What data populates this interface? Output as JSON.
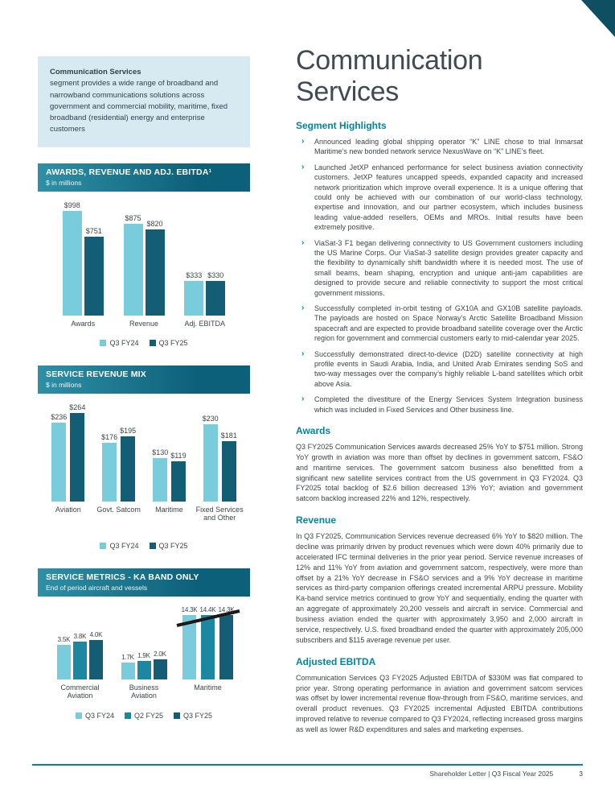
{
  "page": {
    "colors": {
      "teal_heading": "#0084a3",
      "header_gradient_start": "#2e90a6",
      "header_gradient_end": "#0d6079",
      "bar_light": "#79ccdb",
      "bar_mid": "#1b87a0",
      "bar_dark": "#135d75",
      "info_box_bg": "#d7eaf2",
      "corner_accent": "#0e5062"
    },
    "footer": {
      "text": "Shareholder Letter  |  Q3 Fiscal Year 2025",
      "page_number": "3"
    }
  },
  "info_box": {
    "title": "Communication Services",
    "body": "segment provides a wide range of broadband and narrowband communications solutions across government and commercial mobility, maritime, fixed broadband (residential) energy and enterprise customers"
  },
  "charts": [
    {
      "header": "AWARDS, REVENUE AND ADJ. EBITDA¹",
      "subheader": "$ in millions",
      "chart_data": {
        "type": "bar",
        "categories": [
          "Awards",
          "Revenue",
          "Adj. EBITDA"
        ],
        "series": [
          {
            "name": "Q3 FY24",
            "color": "#79ccdb",
            "values": [
              998,
              875,
              333
            ],
            "value_labels": [
              "$998",
              "$875",
              "$333"
            ]
          },
          {
            "name": "Q3 FY25",
            "color": "#135d75",
            "values": [
              751,
              820,
              330
            ],
            "value_labels": [
              "$751",
              "$820",
              "$330"
            ]
          }
        ],
        "ylim": [
          0,
          1000
        ],
        "grid": false,
        "legend_position": "bottom"
      }
    },
    {
      "header": "SERVICE REVENUE MIX",
      "subheader": "$ in millions",
      "chart_data": {
        "type": "bar",
        "categories": [
          "Aviation",
          "Govt. Satcom",
          "Maritime",
          "Fixed Services and Other"
        ],
        "series": [
          {
            "name": "Q3 FY24",
            "color": "#79ccdb",
            "values": [
              236,
              176,
              130,
              230
            ],
            "value_labels": [
              "$236",
              "$176",
              "$130",
              "$230"
            ]
          },
          {
            "name": "Q3 FY25",
            "color": "#135d75",
            "values": [
              264,
              195,
              119,
              181
            ],
            "value_labels": [
              "$264",
              "$195",
              "$119",
              "$181"
            ]
          }
        ],
        "ylim": [
          0,
          280
        ],
        "grid": false,
        "legend_position": "bottom"
      }
    },
    {
      "header": "SERVICE METRICS - KA BAND ONLY",
      "subheader": "End of period aircraft and vessels",
      "chart_data": {
        "type": "bar",
        "categories": [
          "Commercial Aviation",
          "Business Aviation",
          "Maritime"
        ],
        "series": [
          {
            "name": "Q3 FY24",
            "color": "#79ccdb",
            "values": [
              3500,
              1700,
              14300
            ],
            "value_labels": [
              "3.5K",
              "1.7K",
              "14.3K"
            ]
          },
          {
            "name": "Q2 FY25",
            "color": "#1b87a0",
            "values": [
              3800,
              1900,
              14400
            ],
            "value_labels": [
              "3.8K",
              "1.9K",
              "14.4K"
            ]
          },
          {
            "name": "Q3 FY25",
            "color": "#135d75",
            "values": [
              4000,
              2000,
              14300
            ],
            "value_labels": [
              "4.0K",
              "2.0K",
              "14.3K"
            ]
          }
        ],
        "axis_break": true,
        "break_cap": 6500,
        "break_categories": [
          2
        ],
        "grid": false,
        "legend_position": "bottom"
      }
    }
  ],
  "article": {
    "title": "Communication Services",
    "highlights": {
      "heading": "Segment Highlights",
      "marker": "›",
      "bullets": [
        "Announced leading global shipping operator “K” LINE chose to trial Inmarsat Maritime’s new bonded network service NexusWave on “K” LINE’s fleet.",
        "Launched JetXP enhanced performance for select business aviation connectivity customers. JetXP features uncapped speeds, expanded capacity and increased network prioritization which improve overall experience. It is a unique offering that could only be achieved with our combination of our world-class technology, expertise and innovation, and our partner ecosystem, which includes business leading value-added resellers, OEMs and MROs. Initial results have been extremely positive.",
        "ViaSat-3 F1 began delivering connectivity to US Government customers including the US Marine Corps. Our ViaSat-3 satellite design provides greater capacity and the flexibility to dynamically shift bandwidth where it is needed most. The use of small beams, beam shaping, encryption and unique anti-jam capabilities are designed to provide secure and reliable connectivity to support the most critical government missions.",
        "Successfully completed in-orbit testing of GX10A and GX10B satellite payloads. The payloads are hosted on Space Norway’s Arctic Satellite Broadband Mission spacecraft and are expected to provide broadband satellite coverage over the Arctic region for government and commercial customers early to mid-calendar year 2025.",
        "Successfully demonstrated direct-to-device (D2D) satellite connectivity at high profile events in Saudi Arabia, India, and United Arab Emirates sending SoS and two-way messages over the company’s highly reliable L-band satellites which orbit above Asia.",
        "Completed the divestiture of the Energy Services System Integration business which was included in Fixed Services and Other business line."
      ]
    },
    "sections": [
      {
        "heading": "Awards",
        "body": "Q3 FY2025 Communication Services awards decreased 25% YoY to $751 million. Strong YoY growth in aviation was more than offset by declines in government satcom, FS&O and maritime services. The government satcom business also benefitted from a significant new satellite services contract from the US government in Q3 FY2024. Q3 FY2025 total backlog of $2.6 billion decreased 13% YoY; aviation and government satcom backlog increased 22% and 12%, respectively."
      },
      {
        "heading": "Revenue",
        "body": "In Q3 FY2025, Communication Services revenue decreased 6% YoY to $820 million. The decline was primarily driven by product revenues which were down 40% primarily due to accelerated IFC terminal deliveries in the prior year period. Service revenue increases of 12% and 11% YoY from aviation and government satcom, respectively, were more than offset by a 21% YoY decrease in FS&O services and a 9% YoY decrease in maritime services as third-party companion offerings created incremental ARPU pressure. Mobility Ka-band service metrics continued to grow YoY and sequentially, ending the quarter with an aggregate of approximately 20,200 vessels and aircraft in service. Commercial and business aviation ended the quarter with approximately 3,950 and 2,000 aircraft in service, respectively. U.S. fixed broadband ended the quarter with approximately 205,000 subscribers and $115 average revenue per user."
      },
      {
        "heading": "Adjusted EBITDA",
        "body": "Communication Services Q3 FY2025 Adjusted EBITDA of $330M was flat compared to prior year. Strong operating performance in aviation and government satcom services was offset by lower incremental revenue flow-through from FS&O, maritime services, and overall product revenues. Q3 FY2025 incremental Adjusted EBITDA contributions improved relative to revenue compared to Q3 FY2024, reflecting increased gross margins as well as lower R&D expenditures and sales and marketing expenses."
      }
    ]
  }
}
